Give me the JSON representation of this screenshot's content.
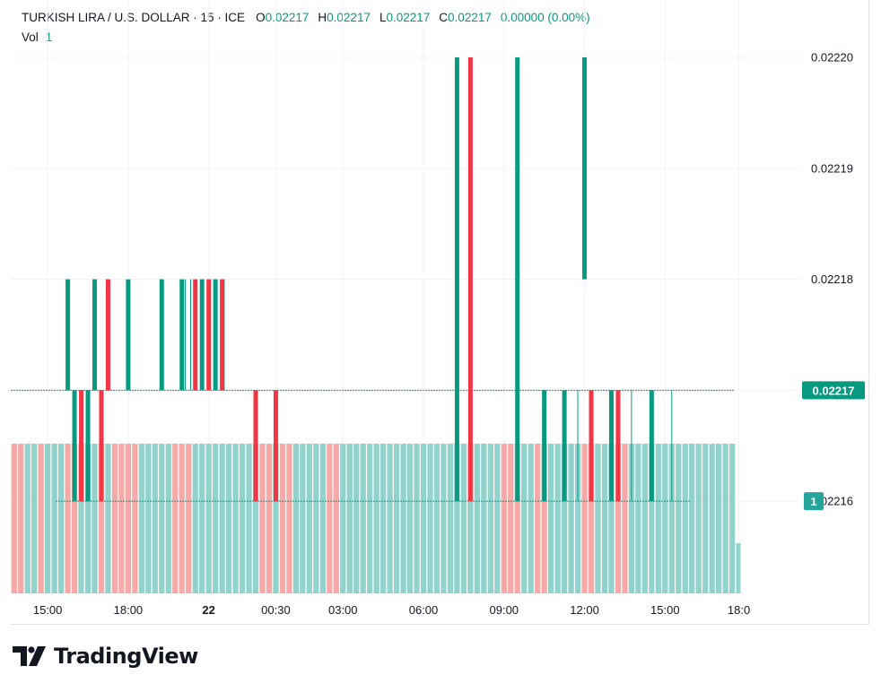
{
  "legend": {
    "symbol": "TURKISH LIRA / U.S. DOLLAR · 15 · ICE",
    "o_label": "O",
    "o_value": "0.02217",
    "h_label": "H",
    "h_value": "0.02217",
    "l_label": "L",
    "l_value": "0.02217",
    "c_label": "C",
    "c_value": "0.02217",
    "change": "0.00000 (0.00%)",
    "vol_label": "Vol",
    "vol_value": "1"
  },
  "branding": {
    "logo_text": "TradingView"
  },
  "colors": {
    "up": "#089981",
    "down": "#f23645",
    "vol_up": "#92d2cc",
    "vol_down": "#f7a9a7",
    "grid": "#f0f3fa",
    "axis_text": "#131722"
  },
  "chart_data": {
    "type": "candlestick",
    "interval": "15",
    "ylim": [
      0.02215605,
      0.0222
    ],
    "y_ticks": [
      0.0222,
      0.02219,
      0.02218,
      0.02217,
      0.02216
    ],
    "y_tick_labels": [
      "0.02220",
      "0.02219",
      "0.02218",
      "0.02217",
      "0.02216"
    ],
    "x_ticks": [
      "15:00",
      "18:00",
      "22",
      "00:30",
      "03:00",
      "06:00",
      "09:00",
      "12:00",
      "15:00",
      "18:0"
    ],
    "x_tick_slots": [
      5,
      17,
      29,
      39,
      49,
      61,
      73,
      85,
      97,
      108
    ],
    "last_price_label": "0.02217",
    "last_volume_label": "1",
    "first_slot": 0,
    "candles": [
      {
        "slot": 8,
        "o": 0.02217,
        "h": 0.02218,
        "l": 0.02217,
        "c": 0.02218
      },
      {
        "slot": 12,
        "o": 0.02217,
        "h": 0.02218,
        "l": 0.02217,
        "c": 0.02218
      },
      {
        "slot": 14,
        "o": 0.02218,
        "h": 0.02218,
        "l": 0.02217,
        "c": 0.02217
      },
      {
        "slot": 17,
        "o": 0.02217,
        "h": 0.02218,
        "l": 0.02217,
        "c": 0.02218
      },
      {
        "slot": 22,
        "o": 0.02217,
        "h": 0.02218,
        "l": 0.02217,
        "c": 0.02218
      },
      {
        "slot": 25,
        "o": 0.02217,
        "h": 0.02218,
        "l": 0.02217,
        "c": 0.02218
      },
      {
        "slot": 27,
        "o": 0.02218,
        "h": 0.02218,
        "l": 0.02217,
        "c": 0.02217
      },
      {
        "slot": 28,
        "o": 0.02217,
        "h": 0.02218,
        "l": 0.02217,
        "c": 0.02218
      },
      {
        "slot": 29,
        "o": 0.02218,
        "h": 0.02218,
        "l": 0.02217,
        "c": 0.02217
      },
      {
        "slot": 30,
        "o": 0.02217,
        "h": 0.02218,
        "l": 0.02217,
        "c": 0.02218
      },
      {
        "slot": 31,
        "o": 0.02218,
        "h": 0.02218,
        "l": 0.02217,
        "c": 0.02217
      },
      {
        "slot": 9,
        "o": 0.02216,
        "h": 0.02217,
        "l": 0.02216,
        "c": 0.02217
      },
      {
        "slot": 10,
        "o": 0.02217,
        "h": 0.02217,
        "l": 0.02216,
        "c": 0.02216
      },
      {
        "slot": 11,
        "o": 0.02216,
        "h": 0.02217,
        "l": 0.02216,
        "c": 0.02217
      },
      {
        "slot": 13,
        "o": 0.02217,
        "h": 0.02217,
        "l": 0.02216,
        "c": 0.02216
      },
      {
        "slot": 36,
        "o": 0.02217,
        "h": 0.02217,
        "l": 0.02216,
        "c": 0.02216
      },
      {
        "slot": 39,
        "o": 0.02217,
        "h": 0.02217,
        "l": 0.02216,
        "c": 0.02216
      },
      {
        "slot": 66,
        "o": 0.02216,
        "h": 0.0222,
        "l": 0.02216,
        "c": 0.0222
      },
      {
        "slot": 68,
        "o": 0.0222,
        "h": 0.0222,
        "l": 0.02216,
        "c": 0.02216
      },
      {
        "slot": 75,
        "o": 0.02216,
        "h": 0.0222,
        "l": 0.02216,
        "c": 0.0222
      },
      {
        "slot": 79,
        "o": 0.02216,
        "h": 0.02217,
        "l": 0.02216,
        "c": 0.02217
      },
      {
        "slot": 82,
        "o": 0.02216,
        "h": 0.02217,
        "l": 0.02216,
        "c": 0.02217
      },
      {
        "slot": 85,
        "o": 0.02218,
        "h": 0.0222,
        "l": 0.02218,
        "c": 0.0222
      },
      {
        "slot": 86,
        "o": 0.02217,
        "h": 0.02217,
        "l": 0.02216,
        "c": 0.02216
      },
      {
        "slot": 89,
        "o": 0.02216,
        "h": 0.02217,
        "l": 0.02216,
        "c": 0.02217
      },
      {
        "slot": 90,
        "o": 0.02217,
        "h": 0.02217,
        "l": 0.02216,
        "c": 0.02216
      },
      {
        "slot": 95,
        "o": 0.02216,
        "h": 0.02217,
        "l": 0.02216,
        "c": 0.02217
      }
    ],
    "volume_pattern": "dduuduuudduuududddduuuuuddduuuuuuuuuuddudduuuuudduuuuuuuuuuuuuuuuuuuuuuuuddduudduuuuudduuudduuuuuuuuuuuuuuuu",
    "volume_last_slot": 107,
    "volume_value": 1
  }
}
